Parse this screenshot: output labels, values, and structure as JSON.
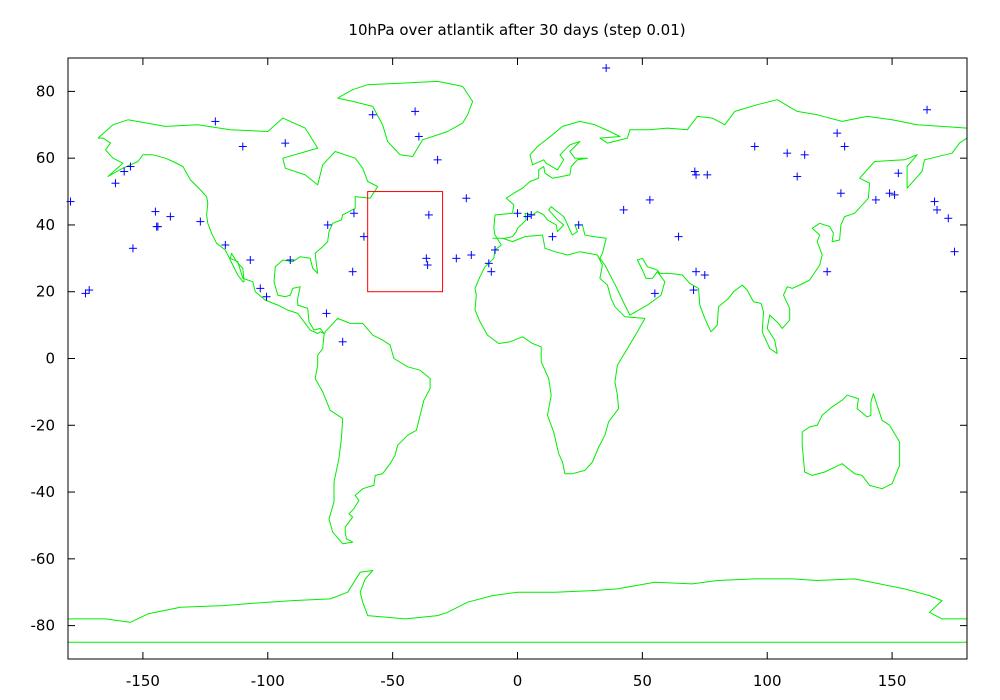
{
  "chart_data": {
    "type": "scatter",
    "title": "10hPa over atlantik after 30 days (step 0.01)",
    "xlabel": "",
    "ylabel": "",
    "xlim": [
      -180,
      180
    ],
    "ylim": [
      -90,
      90
    ],
    "x_ticks": [
      -150,
      -100,
      -50,
      0,
      50,
      100,
      150
    ],
    "y_ticks": [
      80,
      60,
      40,
      20,
      0,
      -20,
      -40,
      -60,
      -80
    ],
    "grid": false,
    "colors": {
      "points": "#0000ff",
      "coastlines": "#00ee00",
      "region": "#ff0000",
      "axes": "#000000"
    },
    "region_box": {
      "lon": [
        -60,
        -30
      ],
      "lat": [
        20,
        50
      ]
    },
    "series": [
      {
        "marker": "plus",
        "points": [
          [
            -179,
            47
          ],
          [
            -173,
            19.5
          ],
          [
            -171.5,
            20.5
          ],
          [
            -161,
            52.5
          ],
          [
            -157.5,
            56
          ],
          [
            -155,
            57.5
          ],
          [
            -154,
            33
          ],
          [
            -145,
            44
          ],
          [
            -144.5,
            39.5
          ],
          [
            -144,
            39.5
          ],
          [
            -139,
            42.5
          ],
          [
            -127,
            41
          ],
          [
            -121,
            71
          ],
          [
            -117,
            34
          ],
          [
            -110,
            63.5
          ],
          [
            -107,
            29.5
          ],
          [
            -103,
            21
          ],
          [
            -100.5,
            18.5
          ],
          [
            -93,
            64.5
          ],
          [
            -91,
            29.5
          ],
          [
            -76.5,
            13.5
          ],
          [
            -76,
            40
          ],
          [
            -70,
            5
          ],
          [
            -66,
            26
          ],
          [
            -65.5,
            43.5
          ],
          [
            -61.5,
            36.5
          ],
          [
            -58,
            73
          ],
          [
            -41,
            74
          ],
          [
            -39.5,
            66.5
          ],
          [
            -36.5,
            30
          ],
          [
            -36,
            28
          ],
          [
            -35.5,
            43
          ],
          [
            -32,
            59.5
          ],
          [
            -24.5,
            30
          ],
          [
            -20.5,
            48
          ],
          [
            -18.5,
            31
          ],
          [
            -11.5,
            28.5
          ],
          [
            -10.5,
            26
          ],
          [
            -9,
            32.5
          ],
          [
            0,
            43.5
          ],
          [
            4,
            42.5
          ],
          [
            5.5,
            43
          ],
          [
            14,
            36.5
          ],
          [
            24.5,
            40
          ],
          [
            35.5,
            87
          ],
          [
            42.5,
            44.5
          ],
          [
            53,
            47.5
          ],
          [
            55,
            19.5
          ],
          [
            64.5,
            36.5
          ],
          [
            70.5,
            20.5
          ],
          [
            71,
            56
          ],
          [
            71.5,
            55
          ],
          [
            71.5,
            26
          ],
          [
            75,
            25
          ],
          [
            76,
            55
          ],
          [
            95,
            63.5
          ],
          [
            108,
            61.5
          ],
          [
            112,
            54.5
          ],
          [
            115,
            61
          ],
          [
            124,
            26
          ],
          [
            128,
            67.5
          ],
          [
            129.5,
            49.5
          ],
          [
            131,
            63.5
          ],
          [
            143.5,
            47.5
          ],
          [
            149,
            49.5
          ],
          [
            151,
            49
          ],
          [
            152.5,
            55.5
          ],
          [
            164,
            74.5
          ],
          [
            167,
            47
          ],
          [
            168,
            44.5
          ],
          [
            172.5,
            42
          ],
          [
            175,
            32
          ]
        ]
      }
    ]
  }
}
